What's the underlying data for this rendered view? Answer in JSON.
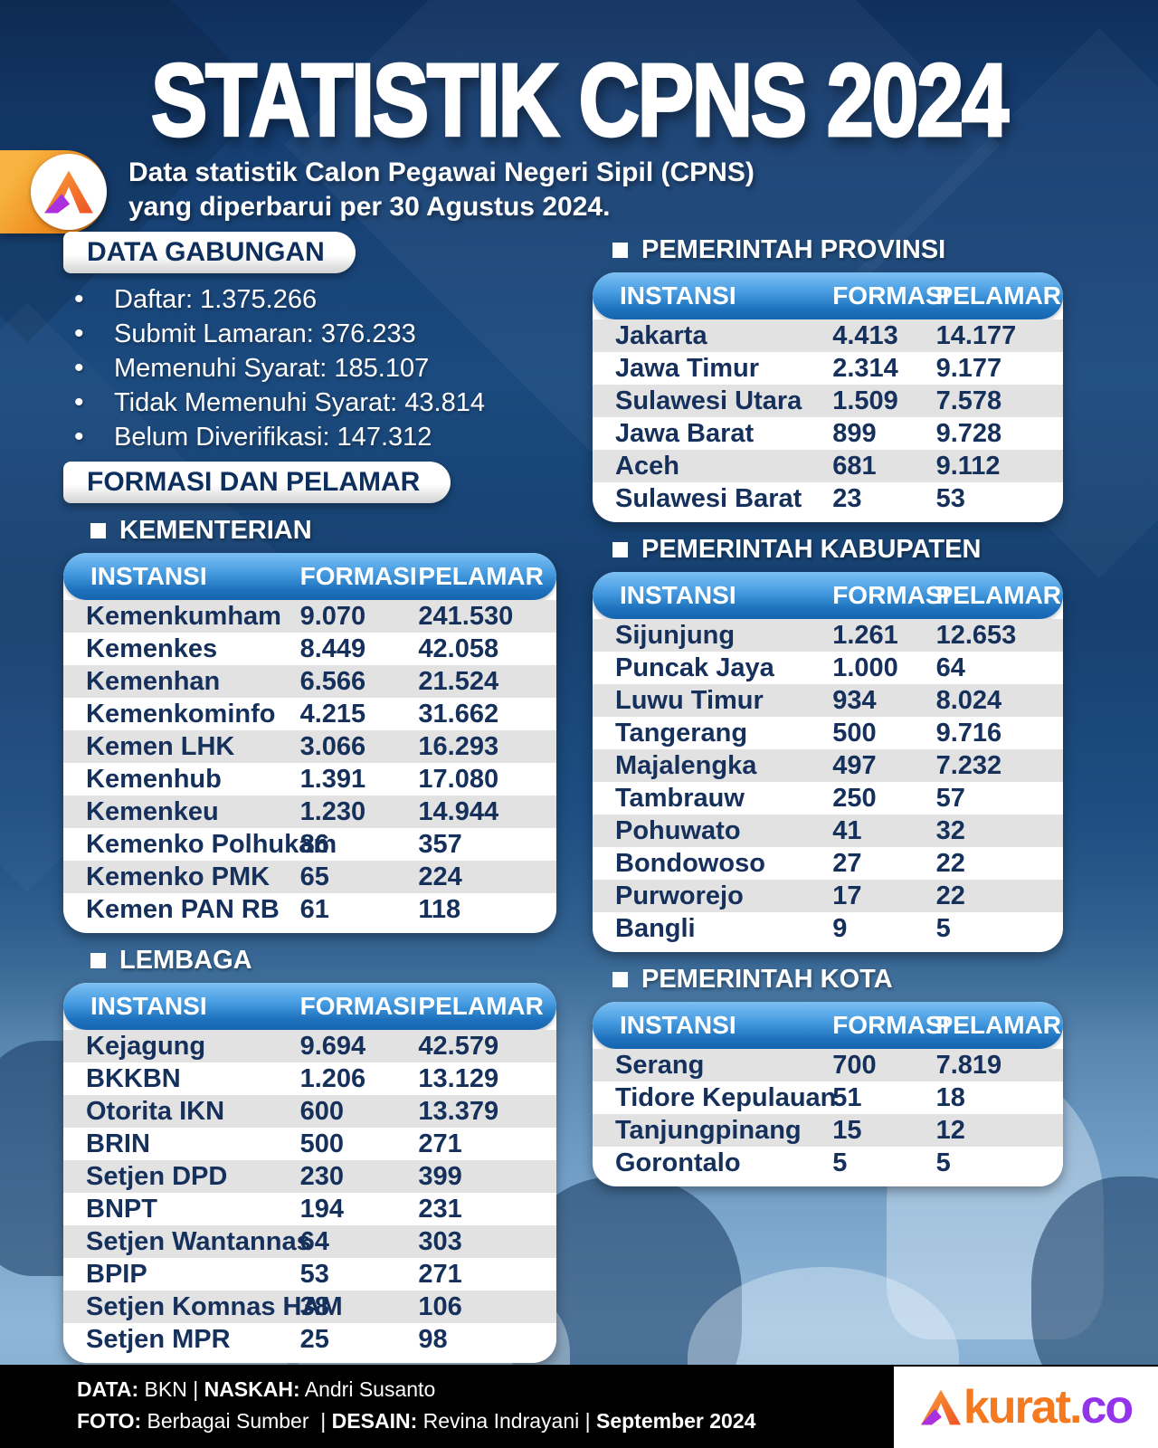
{
  "header": {
    "title": "STATISTIK CPNS 2024",
    "subtitle_line1": "Data statistik Calon Pegawai Negeri Sipil (CPNS)",
    "subtitle_line2": "yang diperbarui per 30 Agustus 2024."
  },
  "sections": {
    "data_gabungan": {
      "heading": "DATA GABUNGAN",
      "items": [
        "Daftar: 1.375.266",
        "Submit Lamaran: 376.233",
        "Memenuhi Syarat: 185.107",
        "Tidak Memenuhi Syarat: 43.814",
        "Belum Diverifikasi: 147.312"
      ]
    },
    "formasi_pelamar_heading": "FORMASI DAN PELAMAR"
  },
  "tables": {
    "columns": [
      "INSTANSI",
      "FORMASI",
      "PELAMAR"
    ],
    "kementerian": {
      "title": "KEMENTERIAN",
      "rows": [
        [
          "Kemenkumham",
          "9.070",
          "241.530"
        ],
        [
          "Kemenkes",
          "8.449",
          "42.058"
        ],
        [
          "Kemenhan",
          "6.566",
          "21.524"
        ],
        [
          "Kemenkominfo",
          "4.215",
          "31.662"
        ],
        [
          "Kemen LHK",
          "3.066",
          "16.293"
        ],
        [
          "Kemenhub",
          "1.391",
          "17.080"
        ],
        [
          "Kemenkeu",
          "1.230",
          "14.944"
        ],
        [
          "Kemenko Polhukam",
          "86",
          "357"
        ],
        [
          "Kemenko PMK",
          "65",
          "224"
        ],
        [
          "Kemen PAN RB",
          "61",
          "118"
        ]
      ]
    },
    "lembaga": {
      "title": "LEMBAGA",
      "rows": [
        [
          "Kejagung",
          "9.694",
          "42.579"
        ],
        [
          "BKKBN",
          "1.206",
          "13.129"
        ],
        [
          "Otorita IKN",
          "600",
          "13.379"
        ],
        [
          "BRIN",
          "500",
          "271"
        ],
        [
          "Setjen DPD",
          "230",
          "399"
        ],
        [
          "BNPT",
          "194",
          "231"
        ],
        [
          "Setjen Wantannas",
          "64",
          "303"
        ],
        [
          "BPIP",
          "53",
          "271"
        ],
        [
          "Setjen Komnas HAM",
          "38",
          "106"
        ],
        [
          "Setjen MPR",
          "25",
          "98"
        ]
      ]
    },
    "provinsi": {
      "title": "PEMERINTAH PROVINSI",
      "rows": [
        [
          "Jakarta",
          "4.413",
          "14.177"
        ],
        [
          "Jawa Timur",
          "2.314",
          "9.177"
        ],
        [
          "Sulawesi Utara",
          "1.509",
          "7.578"
        ],
        [
          "Jawa Barat",
          "899",
          "9.728"
        ],
        [
          "Aceh",
          "681",
          "9.112"
        ],
        [
          "Sulawesi Barat",
          "23",
          "53"
        ]
      ]
    },
    "kabupaten": {
      "title": "PEMERINTAH KABUPATEN",
      "rows": [
        [
          "Sijunjung",
          "1.261",
          "12.653"
        ],
        [
          "Puncak Jaya",
          "1.000",
          "64"
        ],
        [
          "Luwu Timur",
          "934",
          "8.024"
        ],
        [
          "Tangerang",
          "500",
          "9.716"
        ],
        [
          "Majalengka",
          "497",
          "7.232"
        ],
        [
          "Tambrauw",
          "250",
          "57"
        ],
        [
          "Pohuwato",
          "41",
          "32"
        ],
        [
          "Bondowoso",
          "27",
          "22"
        ],
        [
          "Purworejo",
          "17",
          "22"
        ],
        [
          "Bangli",
          "9",
          "5"
        ]
      ]
    },
    "kota": {
      "title": "PEMERINTAH KOTA",
      "rows": [
        [
          "Serang",
          "700",
          "7.819"
        ],
        [
          "Tidore Kepulauan",
          "51",
          "18"
        ],
        [
          "Tanjungpinang",
          "15",
          "12"
        ],
        [
          "Gorontalo",
          "5",
          "5"
        ]
      ]
    }
  },
  "footer": {
    "line1_runs": [
      {
        "t": "DATA:",
        "b": true
      },
      {
        "t": " BKN "
      },
      {
        "t": "| "
      },
      {
        "t": "NASKAH:",
        "b": true
      },
      {
        "t": " Andri Susanto"
      }
    ],
    "line2_runs": [
      {
        "t": "FOTO:",
        "b": true
      },
      {
        "t": " Berbagai Sumber  "
      },
      {
        "t": "| "
      },
      {
        "t": "DESAIN:",
        "b": true
      },
      {
        "t": " Revina Indrayani "
      },
      {
        "t": "| "
      },
      {
        "t": "September 2024",
        "b": true
      }
    ],
    "logo_text_main": "kurat.",
    "logo_text_suffix": "co"
  },
  "colors": {
    "background_navy": "#153d70",
    "table_header_blue": "#2f86d4",
    "row_stripe_gray": "#e2e2e2",
    "text_navy": "#16305c",
    "brand_orange": "#f4791f",
    "brand_purple": "#9333ea"
  }
}
